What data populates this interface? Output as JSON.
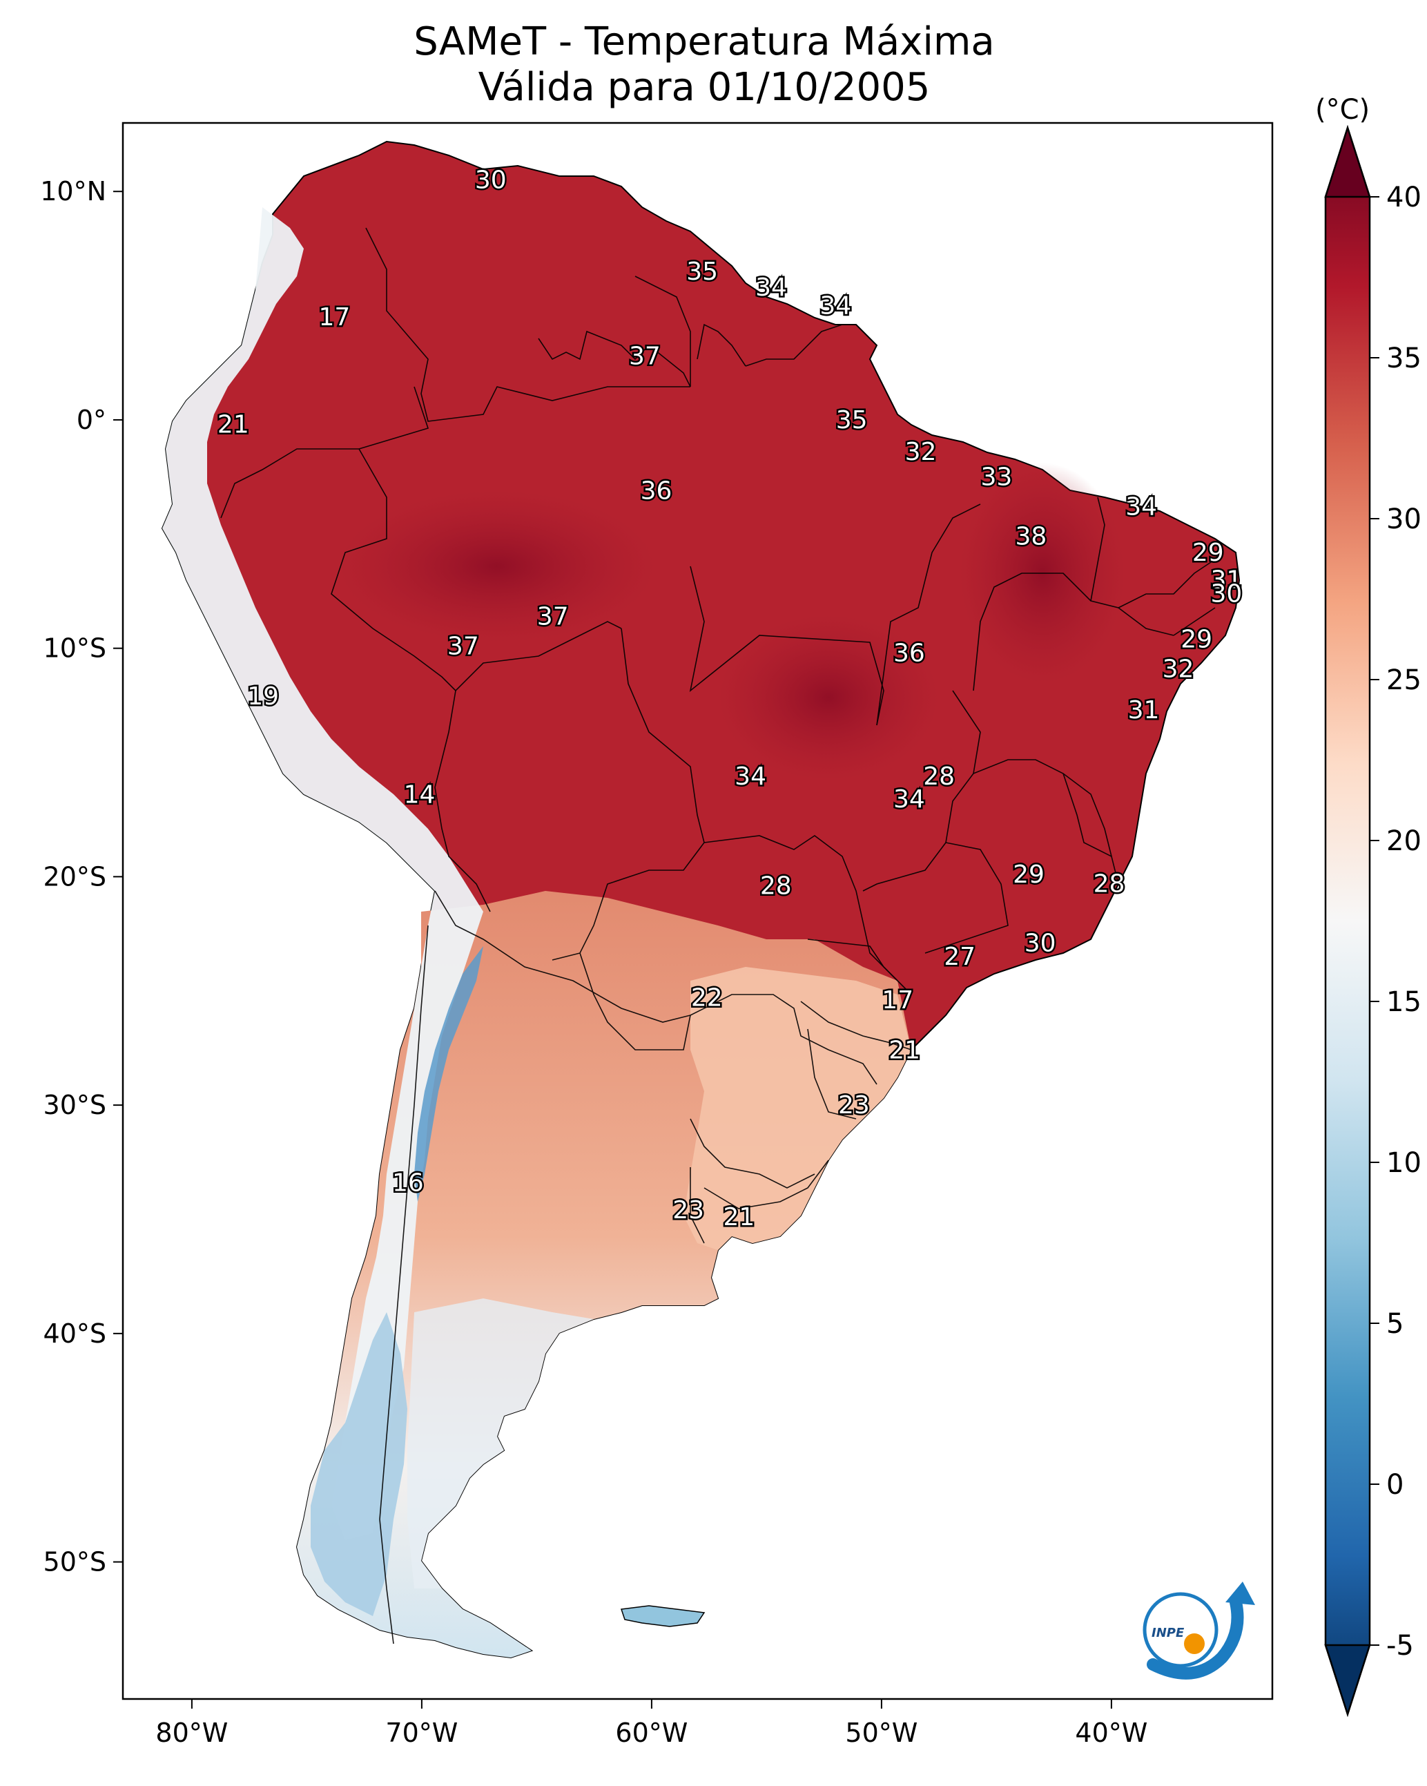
{
  "title": {
    "line1": "SAMeT - Temperatura Máxima",
    "line2": "Válida para 01/10/2005"
  },
  "axes": {
    "lon_ticks": [
      {
        "value": -80,
        "label": "80°W"
      },
      {
        "value": -70,
        "label": "70°W"
      },
      {
        "value": -60,
        "label": "60°W"
      },
      {
        "value": -50,
        "label": "50°W"
      },
      {
        "value": -40,
        "label": "40°W"
      }
    ],
    "lat_ticks": [
      {
        "value": 10,
        "label": "10°N"
      },
      {
        "value": 0,
        "label": "0°"
      },
      {
        "value": -10,
        "label": "10°S"
      },
      {
        "value": -20,
        "label": "20°S"
      },
      {
        "value": -30,
        "label": "30°S"
      },
      {
        "value": -40,
        "label": "40°S"
      },
      {
        "value": -50,
        "label": "50°S"
      }
    ],
    "lon_range": [
      -83,
      -33
    ],
    "lat_range": [
      -56,
      13
    ]
  },
  "colorbar": {
    "unit": "(°C)",
    "range": [
      -5,
      40
    ],
    "ticks": [
      {
        "value": 40,
        "label": "40"
      },
      {
        "value": 35,
        "label": "35"
      },
      {
        "value": 30,
        "label": "30"
      },
      {
        "value": 25,
        "label": "25"
      },
      {
        "value": 20,
        "label": "20"
      },
      {
        "value": 15,
        "label": "15"
      },
      {
        "value": 10,
        "label": "10"
      },
      {
        "value": 5,
        "label": "5"
      },
      {
        "value": 0,
        "label": "0"
      },
      {
        "value": -5,
        "label": "-5"
      }
    ],
    "colors": [
      "#053061",
      "#2166ac",
      "#4393c3",
      "#92c5de",
      "#d1e5f0",
      "#f7f7f7",
      "#fddbc7",
      "#f4a582",
      "#d6604d",
      "#b2182b",
      "#67001f"
    ]
  },
  "values": [
    {
      "lon": -67.0,
      "lat": 10.5,
      "label": "30"
    },
    {
      "lon": -57.8,
      "lat": 6.5,
      "label": "35"
    },
    {
      "lon": -54.8,
      "lat": 5.8,
      "label": "34"
    },
    {
      "lon": -52.0,
      "lat": 5.0,
      "label": "34"
    },
    {
      "lon": -73.8,
      "lat": 4.5,
      "label": "17"
    },
    {
      "lon": -60.3,
      "lat": 2.8,
      "label": "37"
    },
    {
      "lon": -78.2,
      "lat": -0.2,
      "label": "21"
    },
    {
      "lon": -51.3,
      "lat": 0.0,
      "label": "35"
    },
    {
      "lon": -48.3,
      "lat": -1.4,
      "label": "32"
    },
    {
      "lon": -59.8,
      "lat": -3.1,
      "label": "36"
    },
    {
      "lon": -45.0,
      "lat": -2.5,
      "label": "33"
    },
    {
      "lon": -38.7,
      "lat": -3.8,
      "label": "34"
    },
    {
      "lon": -43.5,
      "lat": -5.1,
      "label": "38"
    },
    {
      "lon": -35.8,
      "lat": -5.8,
      "label": "29"
    },
    {
      "lon": -35.0,
      "lat": -7.0,
      "label": "31"
    },
    {
      "lon": -35.0,
      "lat": -7.6,
      "label": "30"
    },
    {
      "lon": -64.3,
      "lat": -8.6,
      "label": "37"
    },
    {
      "lon": -68.2,
      "lat": -9.9,
      "label": "37"
    },
    {
      "lon": -48.8,
      "lat": -10.2,
      "label": "36"
    },
    {
      "lon": -36.3,
      "lat": -9.6,
      "label": "29"
    },
    {
      "lon": -37.1,
      "lat": -10.9,
      "label": "32"
    },
    {
      "lon": -38.6,
      "lat": -12.7,
      "label": "31"
    },
    {
      "lon": -76.9,
      "lat": -12.1,
      "label": "19"
    },
    {
      "lon": -55.7,
      "lat": -15.6,
      "label": "34"
    },
    {
      "lon": -47.5,
      "lat": -15.6,
      "label": "28"
    },
    {
      "lon": -48.8,
      "lat": -16.6,
      "label": "34"
    },
    {
      "lon": -70.1,
      "lat": -16.4,
      "label": "14"
    },
    {
      "lon": -43.6,
      "lat": -19.9,
      "label": "29"
    },
    {
      "lon": -40.1,
      "lat": -20.3,
      "label": "28"
    },
    {
      "lon": -54.6,
      "lat": -20.4,
      "label": "28"
    },
    {
      "lon": -43.1,
      "lat": -22.9,
      "label": "30"
    },
    {
      "lon": -46.6,
      "lat": -23.5,
      "label": "27"
    },
    {
      "lon": -57.6,
      "lat": -25.3,
      "label": "22"
    },
    {
      "lon": -49.3,
      "lat": -25.4,
      "label": "17"
    },
    {
      "lon": -49.0,
      "lat": -27.6,
      "label": "21"
    },
    {
      "lon": -51.2,
      "lat": -30.0,
      "label": "23"
    },
    {
      "lon": -70.6,
      "lat": -33.4,
      "label": "16"
    },
    {
      "lon": -58.4,
      "lat": -34.6,
      "label": "23"
    },
    {
      "lon": -56.2,
      "lat": -34.9,
      "label": "21"
    }
  ]
}
